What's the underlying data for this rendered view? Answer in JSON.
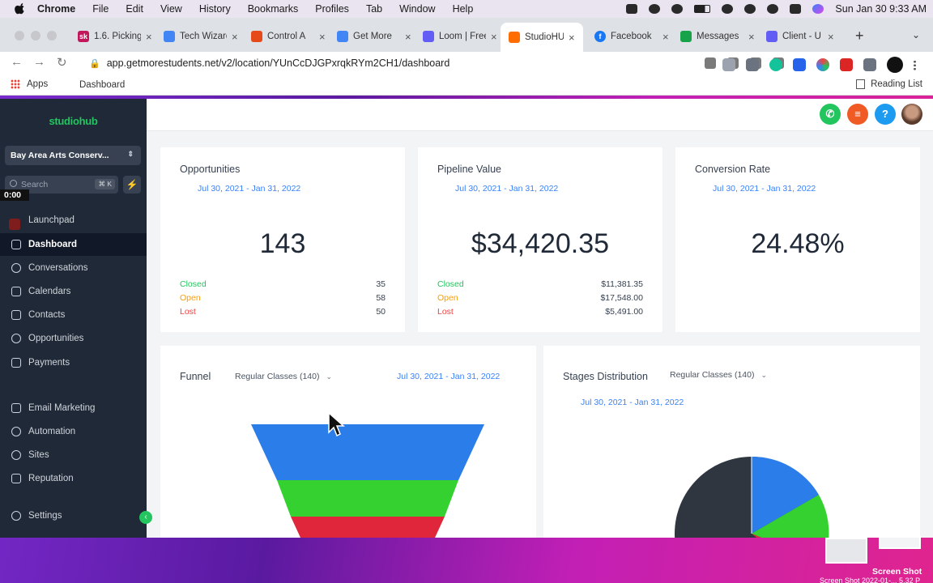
{
  "menubar": {
    "app": "Chrome",
    "items": [
      "File",
      "Edit",
      "View",
      "History",
      "Bookmarks",
      "Profiles",
      "Tab",
      "Window",
      "Help"
    ],
    "datetime": "Sun Jan 30  9:33 AM"
  },
  "tabs": [
    {
      "title": "1.6. Picking",
      "color": "#c2185b",
      "fav": "sk"
    },
    {
      "title": "Tech Wizard",
      "color": "#4285f4",
      "fav": ""
    },
    {
      "title": "Control A",
      "color": "#e64a19",
      "fav": ""
    },
    {
      "title": "Get More",
      "color": "#4285f4",
      "fav": ""
    },
    {
      "title": "Loom | Free",
      "color": "#625df5",
      "fav": ""
    },
    {
      "title": "StudioHUB",
      "color": "#ff6d00",
      "fav": ""
    },
    {
      "title": "Facebook",
      "color": "#1877f2",
      "fav": "f"
    },
    {
      "title": "Messages",
      "color": "#16a34a",
      "fav": ""
    },
    {
      "title": "Client - U",
      "color": "#625df5",
      "fav": ""
    }
  ],
  "browser": {
    "url": "app.getmorestudents.net/v2/location/YUnCcDJGPxrqkRYm2CH1/dashboard",
    "bookmarks": {
      "apps": "Apps",
      "dashboard": "Dashboard",
      "reading_list": "Reading List"
    }
  },
  "sidebar": {
    "logo": "studiohub",
    "location": "Bay Area Arts Conserv...",
    "search_placeholder": "Search",
    "search_shortcut": "⌘ K",
    "timer": "0:00",
    "items": [
      {
        "label": "Launchpad",
        "active": false
      },
      {
        "label": "Dashboard",
        "active": true
      },
      {
        "label": "Conversations",
        "active": false
      },
      {
        "label": "Calendars",
        "active": false
      },
      {
        "label": "Contacts",
        "active": false
      },
      {
        "label": "Opportunities",
        "active": false
      },
      {
        "label": "Payments",
        "active": false
      },
      {
        "label": "Email Marketing",
        "active": false
      },
      {
        "label": "Automation",
        "active": false
      },
      {
        "label": "Sites",
        "active": false
      },
      {
        "label": "Reputation",
        "active": false
      },
      {
        "label": "Settings",
        "active": false
      }
    ]
  },
  "topbar": {
    "help": "?"
  },
  "cards": {
    "opportunities": {
      "title": "Opportunities",
      "date_range": "Jul 30, 2021 - Jan 31, 2022",
      "value": "143",
      "closed_label": "Closed",
      "closed": "35",
      "open_label": "Open",
      "open": "58",
      "lost_label": "Lost",
      "lost": "50"
    },
    "pipeline": {
      "title": "Pipeline Value",
      "date_range": "Jul 30, 2021 - Jan 31, 2022",
      "value": "$34,420.35",
      "closed_label": "Closed",
      "closed": "$11,381.35",
      "open_label": "Open",
      "open": "$17,548.00",
      "lost_label": "Lost",
      "lost": "$5,491.00"
    },
    "conversion": {
      "title": "Conversion Rate",
      "date_range": "Jul 30, 2021 - Jan 31, 2022",
      "value": "24.48%"
    },
    "funnel": {
      "title": "Funnel",
      "pipeline": "Regular Classes (140)",
      "date_range": "Jul 30, 2021 - Jan 31, 2022",
      "colors": [
        "#2b7de9",
        "#35d130",
        "#e0263a"
      ]
    },
    "stages": {
      "title": "Stages Distribution",
      "pipeline": "Regular Classes (140)",
      "date_range": "Jul 30, 2021 - Jan 31, 2022",
      "colors": [
        "#2f3640",
        "#2b7de9",
        "#35d130",
        "#e0263a"
      ]
    }
  },
  "dock": {
    "screenshot_label": "Screen Shot",
    "screenshot_sub": "Screen Shot 2022-01-... 5.32 P"
  }
}
